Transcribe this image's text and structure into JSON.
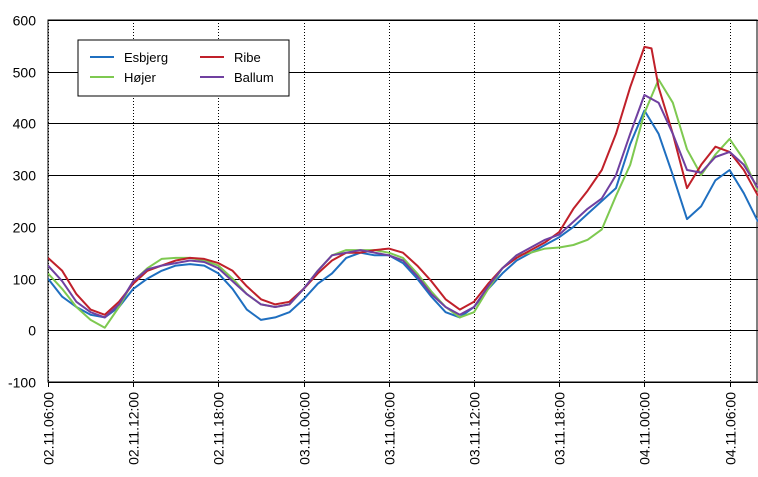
{
  "chart_data": {
    "type": "line",
    "title": "",
    "xlabel": "",
    "ylabel": "",
    "ylim": [
      -100,
      600
    ],
    "yticks": [
      -100,
      0,
      100,
      200,
      300,
      400,
      500,
      600
    ],
    "xlim": [
      "02.11.06:00",
      "04.11.08:00"
    ],
    "xticks": [
      "02.11.06:00",
      "02.11.12:00",
      "02.11.18:00",
      "03.11.00:00",
      "03.11.06:00",
      "03.11.12:00",
      "03.11.18:00",
      "04.11.00:00",
      "04.11.06:00"
    ],
    "grid": true,
    "legend": "top-left",
    "series": [
      {
        "name": "Esbjerg",
        "color": "#1f6fc0",
        "points": [
          [
            "02.11.06:00",
            100
          ],
          [
            "02.11.07:00",
            65
          ],
          [
            "02.11.08:00",
            45
          ],
          [
            "02.11.09:00",
            30
          ],
          [
            "02.11.10:00",
            25
          ],
          [
            "02.11.11:00",
            45
          ],
          [
            "02.11.12:00",
            80
          ],
          [
            "02.11.13:00",
            100
          ],
          [
            "02.11.14:00",
            115
          ],
          [
            "02.11.15:00",
            125
          ],
          [
            "02.11.16:00",
            128
          ],
          [
            "02.11.17:00",
            125
          ],
          [
            "02.11.18:00",
            110
          ],
          [
            "02.11.19:00",
            80
          ],
          [
            "02.11.20:00",
            40
          ],
          [
            "02.11.21:00",
            20
          ],
          [
            "02.11.22:00",
            25
          ],
          [
            "02.11.23:00",
            35
          ],
          [
            "03.11.00:00",
            60
          ],
          [
            "03.11.01:00",
            90
          ],
          [
            "03.11.02:00",
            110
          ],
          [
            "03.11.03:00",
            140
          ],
          [
            "03.11.04:00",
            150
          ],
          [
            "03.11.05:00",
            145
          ],
          [
            "03.11.06:00",
            145
          ],
          [
            "03.11.07:00",
            130
          ],
          [
            "03.11.08:00",
            100
          ],
          [
            "03.11.09:00",
            65
          ],
          [
            "03.11.10:00",
            35
          ],
          [
            "03.11.11:00",
            25
          ],
          [
            "03.11.12:00",
            45
          ],
          [
            "03.11.13:00",
            80
          ],
          [
            "03.11.14:00",
            110
          ],
          [
            "03.11.15:00",
            135
          ],
          [
            "03.11.16:00",
            150
          ],
          [
            "03.11.17:00",
            165
          ],
          [
            "03.11.18:00",
            180
          ],
          [
            "03.11.19:00",
            200
          ],
          [
            "03.11.20:00",
            225
          ],
          [
            "03.11.21:00",
            250
          ],
          [
            "03.11.22:00",
            275
          ],
          [
            "03.11.23:00",
            360
          ],
          [
            "04.11.00:00",
            425
          ],
          [
            "04.11.01:00",
            380
          ],
          [
            "04.11.02:00",
            300
          ],
          [
            "04.11.03:00",
            215
          ],
          [
            "04.11.04:00",
            240
          ],
          [
            "04.11.05:00",
            290
          ],
          [
            "04.11.06:00",
            310
          ],
          [
            "04.11.07:00",
            265
          ],
          [
            "04.11.08:00",
            210
          ]
        ]
      },
      {
        "name": "Højer",
        "color": "#7ec950",
        "points": [
          [
            "02.11.06:00",
            110
          ],
          [
            "02.11.07:00",
            80
          ],
          [
            "02.11.08:00",
            45
          ],
          [
            "02.11.09:00",
            20
          ],
          [
            "02.11.10:00",
            5
          ],
          [
            "02.11.11:00",
            45
          ],
          [
            "02.11.12:00",
            95
          ],
          [
            "02.11.13:00",
            120
          ],
          [
            "02.11.14:00",
            138
          ],
          [
            "02.11.15:00",
            140
          ],
          [
            "02.11.16:00",
            140
          ],
          [
            "02.11.17:00",
            135
          ],
          [
            "02.11.18:00",
            125
          ],
          [
            "02.11.19:00",
            100
          ],
          [
            "02.11.20:00",
            70
          ],
          [
            "02.11.21:00",
            50
          ],
          [
            "02.11.22:00",
            45
          ],
          [
            "02.11.23:00",
            50
          ],
          [
            "03.11.00:00",
            80
          ],
          [
            "03.11.01:00",
            115
          ],
          [
            "03.11.02:00",
            145
          ],
          [
            "03.11.03:00",
            155
          ],
          [
            "03.11.04:00",
            155
          ],
          [
            "03.11.05:00",
            155
          ],
          [
            "03.11.06:00",
            150
          ],
          [
            "03.11.07:00",
            140
          ],
          [
            "03.11.08:00",
            110
          ],
          [
            "03.11.09:00",
            75
          ],
          [
            "03.11.10:00",
            45
          ],
          [
            "03.11.11:00",
            25
          ],
          [
            "03.11.12:00",
            35
          ],
          [
            "03.11.13:00",
            80
          ],
          [
            "03.11.14:00",
            120
          ],
          [
            "03.11.15:00",
            145
          ],
          [
            "03.11.16:00",
            150
          ],
          [
            "03.11.17:00",
            158
          ],
          [
            "03.11.18:00",
            160
          ],
          [
            "03.11.19:00",
            165
          ],
          [
            "03.11.20:00",
            175
          ],
          [
            "03.11.21:00",
            195
          ],
          [
            "03.11.22:00",
            260
          ],
          [
            "03.11.23:00",
            320
          ],
          [
            "04.11.00:00",
            420
          ],
          [
            "04.11.01:00",
            485
          ],
          [
            "04.11.02:00",
            440
          ],
          [
            "04.11.03:00",
            350
          ],
          [
            "04.11.04:00",
            300
          ],
          [
            "04.11.05:00",
            340
          ],
          [
            "04.11.06:00",
            370
          ],
          [
            "04.11.07:00",
            330
          ],
          [
            "04.11.08:00",
            270
          ]
        ]
      },
      {
        "name": "Ribe",
        "color": "#c0202a",
        "points": [
          [
            "02.11.06:00",
            140
          ],
          [
            "02.11.07:00",
            115
          ],
          [
            "02.11.08:00",
            70
          ],
          [
            "02.11.09:00",
            40
          ],
          [
            "02.11.10:00",
            30
          ],
          [
            "02.11.11:00",
            55
          ],
          [
            "02.11.12:00",
            90
          ],
          [
            "02.11.13:00",
            115
          ],
          [
            "02.11.14:00",
            125
          ],
          [
            "02.11.15:00",
            135
          ],
          [
            "02.11.16:00",
            140
          ],
          [
            "02.11.17:00",
            138
          ],
          [
            "02.11.18:00",
            130
          ],
          [
            "02.11.19:00",
            115
          ],
          [
            "02.11.20:00",
            85
          ],
          [
            "02.11.21:00",
            60
          ],
          [
            "02.11.22:00",
            50
          ],
          [
            "02.11.23:00",
            55
          ],
          [
            "03.11.00:00",
            80
          ],
          [
            "03.11.01:00",
            110
          ],
          [
            "03.11.02:00",
            135
          ],
          [
            "03.11.03:00",
            150
          ],
          [
            "03.11.04:00",
            150
          ],
          [
            "03.11.05:00",
            155
          ],
          [
            "03.11.06:00",
            158
          ],
          [
            "03.11.07:00",
            150
          ],
          [
            "03.11.08:00",
            125
          ],
          [
            "03.11.09:00",
            95
          ],
          [
            "03.11.10:00",
            60
          ],
          [
            "03.11.11:00",
            40
          ],
          [
            "03.11.12:00",
            55
          ],
          [
            "03.11.13:00",
            90
          ],
          [
            "03.11.14:00",
            120
          ],
          [
            "03.11.15:00",
            140
          ],
          [
            "03.11.16:00",
            155
          ],
          [
            "03.11.17:00",
            170
          ],
          [
            "03.11.18:00",
            190
          ],
          [
            "03.11.19:00",
            235
          ],
          [
            "03.11.20:00",
            270
          ],
          [
            "03.11.21:00",
            310
          ],
          [
            "03.11.22:00",
            380
          ],
          [
            "03.11.23:00",
            470
          ],
          [
            "04.11.00:00",
            548
          ],
          [
            "04.11.00:30",
            545
          ],
          [
            "04.11.01:00",
            470
          ],
          [
            "04.11.02:00",
            380
          ],
          [
            "04.11.03:00",
            275
          ],
          [
            "04.11.04:00",
            320
          ],
          [
            "04.11.05:00",
            355
          ],
          [
            "04.11.06:00",
            345
          ],
          [
            "04.11.07:00",
            310
          ],
          [
            "04.11.08:00",
            260
          ]
        ]
      },
      {
        "name": "Ballum",
        "color": "#7040a0",
        "points": [
          [
            "02.11.06:00",
            125
          ],
          [
            "02.11.07:00",
            95
          ],
          [
            "02.11.08:00",
            55
          ],
          [
            "02.11.09:00",
            35
          ],
          [
            "02.11.10:00",
            25
          ],
          [
            "02.11.11:00",
            50
          ],
          [
            "02.11.12:00",
            95
          ],
          [
            "02.11.13:00",
            118
          ],
          [
            "02.11.14:00",
            125
          ],
          [
            "02.11.15:00",
            130
          ],
          [
            "02.11.16:00",
            135
          ],
          [
            "02.11.17:00",
            132
          ],
          [
            "02.11.18:00",
            120
          ],
          [
            "02.11.19:00",
            95
          ],
          [
            "02.11.20:00",
            70
          ],
          [
            "02.11.21:00",
            50
          ],
          [
            "02.11.22:00",
            45
          ],
          [
            "02.11.23:00",
            50
          ],
          [
            "03.11.00:00",
            80
          ],
          [
            "03.11.01:00",
            115
          ],
          [
            "03.11.02:00",
            145
          ],
          [
            "03.11.03:00",
            150
          ],
          [
            "03.11.04:00",
            155
          ],
          [
            "03.11.05:00",
            150
          ],
          [
            "03.11.06:00",
            145
          ],
          [
            "03.11.07:00",
            135
          ],
          [
            "03.11.08:00",
            105
          ],
          [
            "03.11.09:00",
            70
          ],
          [
            "03.11.10:00",
            45
          ],
          [
            "03.11.11:00",
            30
          ],
          [
            "03.11.12:00",
            45
          ],
          [
            "03.11.13:00",
            85
          ],
          [
            "03.11.14:00",
            120
          ],
          [
            "03.11.15:00",
            145
          ],
          [
            "03.11.16:00",
            160
          ],
          [
            "03.11.17:00",
            175
          ],
          [
            "03.11.18:00",
            185
          ],
          [
            "03.11.19:00",
            210
          ],
          [
            "03.11.20:00",
            235
          ],
          [
            "03.11.21:00",
            255
          ],
          [
            "03.11.22:00",
            300
          ],
          [
            "03.11.23:00",
            380
          ],
          [
            "04.11.00:00",
            455
          ],
          [
            "04.11.01:00",
            440
          ],
          [
            "04.11.02:00",
            380
          ],
          [
            "04.11.03:00",
            310
          ],
          [
            "04.11.04:00",
            305
          ],
          [
            "04.11.05:00",
            335
          ],
          [
            "04.11.06:00",
            345
          ],
          [
            "04.11.07:00",
            320
          ],
          [
            "04.11.08:00",
            275
          ]
        ]
      }
    ]
  }
}
